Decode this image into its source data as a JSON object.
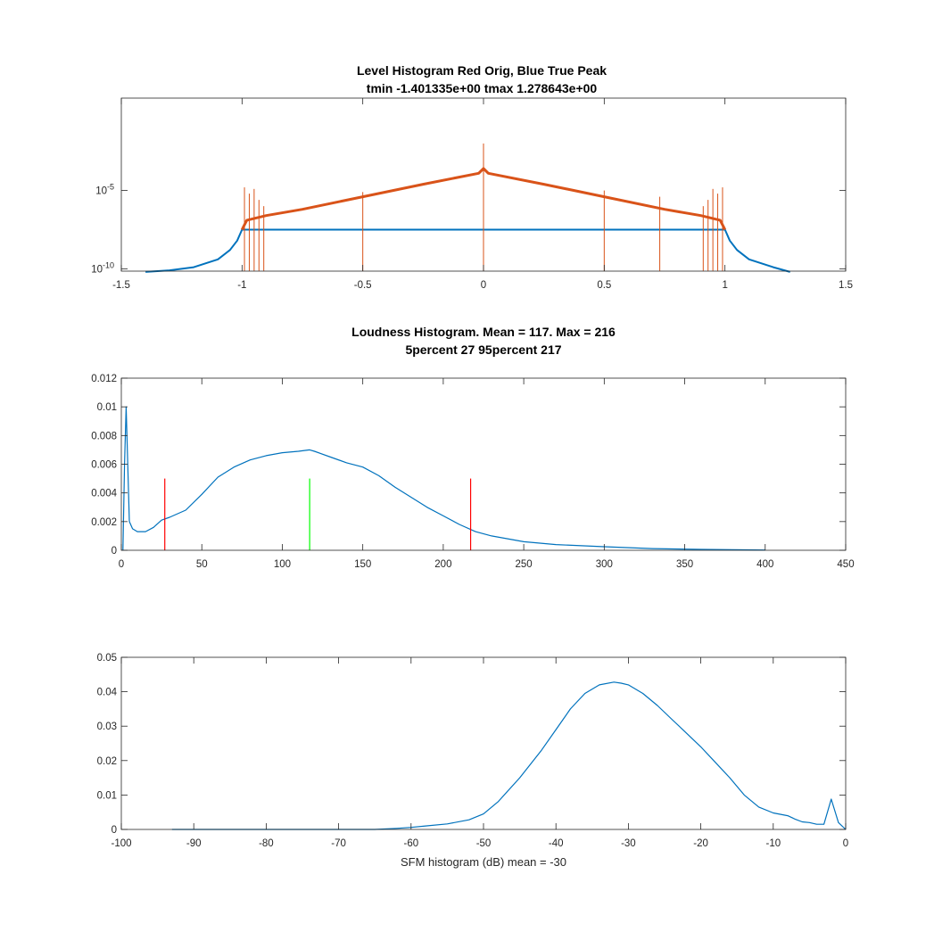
{
  "chart_data": [
    {
      "type": "line",
      "title": "Level Histogram Red Orig, Blue True Peak",
      "subtitle": "tmin -1.401335e+00 tmax 1.278643e+00",
      "xlabel": "",
      "ylabel": "",
      "xlim": [
        -1.5,
        1.5
      ],
      "ylim_log10": [
        -10.15,
        0.9
      ],
      "yscale": "log",
      "xticks": [
        "-1.5",
        "-1",
        "-0.5",
        "0",
        "0.5",
        "1",
        "1.5"
      ],
      "yticks": [
        {
          "label": "10",
          "exp": "-10"
        },
        {
          "label": "10",
          "exp": "-5"
        }
      ],
      "colors": {
        "series1": "#0072BD",
        "series2": "#D95319"
      },
      "series": [
        {
          "color": "#0072BD",
          "x": [
            -1.4,
            -1.3,
            -1.2,
            -1.1,
            -1.05,
            -1.02,
            -1.0,
            1.0,
            1.02,
            1.05,
            1.1,
            1.2,
            1.27
          ],
          "y_log10": [
            -10.2,
            -10.1,
            -9.9,
            -9.4,
            -8.8,
            -8.2,
            -7.5,
            -7.5,
            -8.2,
            -8.8,
            -9.4,
            -9.9,
            -10.2
          ]
        },
        {
          "color": "#D95319",
          "x": [
            -1.0,
            -0.98,
            -0.9,
            -0.75,
            -0.5,
            -0.25,
            -0.02,
            0.0,
            0.02,
            0.25,
            0.5,
            0.75,
            0.9,
            0.98,
            1.0
          ],
          "y_log10": [
            -7.5,
            -6.9,
            -6.6,
            -6.2,
            -5.4,
            -4.6,
            -3.9,
            -3.6,
            -3.9,
            -4.6,
            -5.4,
            -6.2,
            -6.6,
            -6.9,
            -7.5
          ],
          "spikes": [
            {
              "x": 0.0,
              "y_log10": -2.0
            },
            {
              "x": -0.99,
              "y_log10": -4.8
            },
            {
              "x": -0.97,
              "y_log10": -5.2
            },
            {
              "x": -0.95,
              "y_log10": -4.9
            },
            {
              "x": -0.93,
              "y_log10": -5.6
            },
            {
              "x": -0.91,
              "y_log10": -6.0
            },
            {
              "x": 0.99,
              "y_log10": -4.8
            },
            {
              "x": 0.97,
              "y_log10": -5.2
            },
            {
              "x": 0.95,
              "y_log10": -4.9
            },
            {
              "x": 0.93,
              "y_log10": -5.6
            },
            {
              "x": 0.91,
              "y_log10": -6.0
            },
            {
              "x": 0.5,
              "y_log10": -5.0
            },
            {
              "x": 0.73,
              "y_log10": -5.4
            },
            {
              "x": -0.5,
              "y_log10": -5.1
            }
          ]
        }
      ]
    },
    {
      "type": "line",
      "title": "Loudness Histogram. Mean = 117. Max = 216",
      "subtitle": "5percent 27 95percent 217",
      "xlabel": "",
      "ylabel": "",
      "xlim": [
        0,
        450
      ],
      "ylim": [
        0,
        0.012
      ],
      "xticks": [
        0,
        50,
        100,
        150,
        200,
        250,
        300,
        350,
        400,
        450
      ],
      "yticks": [
        0,
        0.002,
        0.004,
        0.006,
        0.008,
        0.01,
        0.012
      ],
      "colors": {
        "series": "#0072BD",
        "percentile_lines": "#FF0000",
        "mean_line": "#00FF00"
      },
      "series": [
        {
          "color": "#0072BD",
          "x": [
            1,
            2,
            3,
            4,
            5,
            7,
            10,
            15,
            20,
            25,
            30,
            40,
            50,
            60,
            70,
            80,
            90,
            100,
            110,
            117,
            120,
            130,
            140,
            150,
            160,
            170,
            180,
            190,
            200,
            210,
            220,
            230,
            250,
            270,
            300,
            330,
            360,
            400
          ],
          "y": [
            0,
            0.006,
            0.01,
            0.006,
            0.002,
            0.0015,
            0.0013,
            0.0013,
            0.0016,
            0.0021,
            0.0023,
            0.0028,
            0.0039,
            0.0051,
            0.0058,
            0.0063,
            0.0066,
            0.0068,
            0.0069,
            0.007,
            0.0069,
            0.0065,
            0.0061,
            0.0058,
            0.0052,
            0.0044,
            0.0037,
            0.003,
            0.0024,
            0.0018,
            0.0013,
            0.001,
            0.0006,
            0.0004,
            0.00025,
            0.00012,
            6e-05,
            2e-05
          ]
        }
      ],
      "vlines": [
        {
          "x": 27,
          "y": [
            0,
            0.005
          ],
          "color": "#FF0000"
        },
        {
          "x": 117,
          "y": [
            0,
            0.005
          ],
          "color": "#00FF00"
        },
        {
          "x": 217,
          "y": [
            0,
            0.005
          ],
          "color": "#FF0000"
        }
      ]
    },
    {
      "type": "line",
      "title": "",
      "xlabel": "SFM histogram (dB) mean = -30",
      "ylabel": "",
      "xlim": [
        -100,
        0
      ],
      "ylim": [
        0,
        0.05
      ],
      "xticks": [
        -100,
        -90,
        -80,
        -70,
        -60,
        -50,
        -40,
        -30,
        -20,
        -10,
        0
      ],
      "yticks": [
        0,
        0.01,
        0.02,
        0.03,
        0.04,
        0.05
      ],
      "colors": {
        "series": "#0072BD"
      },
      "series": [
        {
          "color": "#0072BD",
          "x": [
            -93,
            -85,
            -75,
            -65,
            -62,
            -60,
            -58,
            -55,
            -52,
            -50,
            -48,
            -45,
            -42,
            -40,
            -38,
            -36,
            -34,
            -32,
            -31,
            -30,
            -28,
            -26,
            -24,
            -22,
            -20,
            -18,
            -16,
            -14,
            -12,
            -10,
            -8,
            -7,
            -6,
            -5,
            -4,
            -3,
            -2,
            -1,
            0
          ],
          "y": [
            0,
            0,
            0,
            0,
            0.0003,
            0.0006,
            0.001,
            0.0016,
            0.0028,
            0.0045,
            0.008,
            0.015,
            0.023,
            0.029,
            0.035,
            0.0395,
            0.042,
            0.0428,
            0.0425,
            0.042,
            0.0395,
            0.036,
            0.032,
            0.028,
            0.024,
            0.0195,
            0.015,
            0.01,
            0.0065,
            0.0048,
            0.004,
            0.003,
            0.0022,
            0.002,
            0.0015,
            0.0015,
            0.0088,
            0.002,
            0
          ]
        }
      ]
    }
  ]
}
